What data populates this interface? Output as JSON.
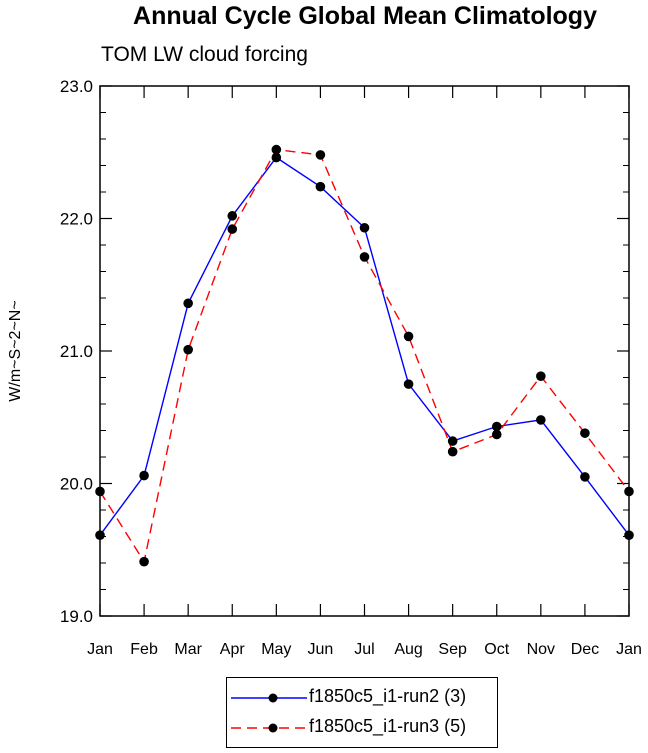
{
  "chart_data": {
    "type": "line",
    "title": "Annual Cycle Global Mean Climatology",
    "subtitle": "TOM LW cloud forcing",
    "xlabel": "",
    "ylabel": "W/m~S~2~N~",
    "ylim": [
      19.0,
      23.0
    ],
    "yticks": [
      "19.0",
      "20.0",
      "21.0",
      "22.0",
      "23.0"
    ],
    "categories": [
      "Jan",
      "Feb",
      "Mar",
      "Apr",
      "May",
      "Jun",
      "Jul",
      "Aug",
      "Sep",
      "Oct",
      "Nov",
      "Dec",
      "Jan"
    ],
    "series": [
      {
        "name": "f1850c5_i1-run2 (3)",
        "color": "#0000ff",
        "dash": "solid",
        "values": [
          19.61,
          20.06,
          21.36,
          22.02,
          22.46,
          22.24,
          21.93,
          20.75,
          20.32,
          20.43,
          20.48,
          20.05,
          19.61
        ]
      },
      {
        "name": "f1850c5_i1-run3 (5)",
        "color": "#ff0000",
        "dash": "dashed",
        "values": [
          19.94,
          19.41,
          21.01,
          21.92,
          22.52,
          22.48,
          21.71,
          21.11,
          20.24,
          20.37,
          20.81,
          20.38,
          19.94
        ]
      }
    ],
    "legend_position": "bottom-center"
  }
}
